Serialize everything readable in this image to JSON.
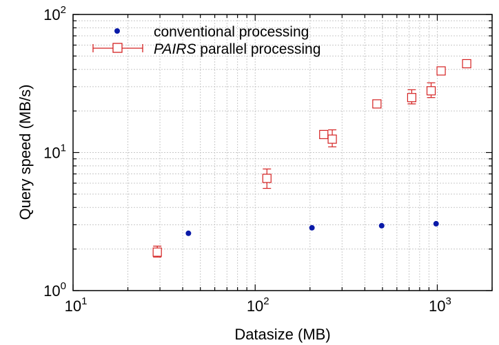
{
  "chart_data": {
    "type": "scatter",
    "title": "",
    "xlabel": "Datasize (MB)",
    "ylabel": "Query speed (MB/s)",
    "xscale": "log",
    "yscale": "log",
    "xlim": [
      10,
      2000
    ],
    "ylim": [
      1,
      100
    ],
    "grid": true,
    "legend_position": "top-center",
    "x_ticks": [
      {
        "value": 10,
        "base": "10",
        "exp": "1"
      },
      {
        "value": 100,
        "base": "10",
        "exp": "2"
      },
      {
        "value": 1000,
        "base": "10",
        "exp": "3"
      }
    ],
    "y_ticks": [
      {
        "value": 1,
        "base": "10",
        "exp": "0"
      },
      {
        "value": 10,
        "base": "10",
        "exp": "1"
      },
      {
        "value": 100,
        "base": "10",
        "exp": "2"
      }
    ],
    "series": [
      {
        "name": "conventional processing",
        "color": "#0a1aa8",
        "marker": "filled-circle",
        "points": [
          {
            "x": 43,
            "y": 2.6
          },
          {
            "x": 205,
            "y": 2.85
          },
          {
            "x": 495,
            "y": 2.95
          },
          {
            "x": 985,
            "y": 3.05
          }
        ]
      },
      {
        "name_italic": "PAIRS",
        "name": " parallel processing",
        "color": "#d42020",
        "marker": "open-square",
        "error_bars": true,
        "points": [
          {
            "x": 29,
            "y": 1.9,
            "ylo": 1.75,
            "yhi": 2.1
          },
          {
            "x": 116,
            "y": 6.5,
            "ylo": 5.5,
            "yhi": 7.6
          },
          {
            "x": 238,
            "y": 13.5,
            "ylo": 12.8,
            "yhi": 14.2
          },
          {
            "x": 265,
            "y": 12.5,
            "ylo": 11.0,
            "yhi": 14.6
          },
          {
            "x": 466,
            "y": 22.5,
            "ylo": 21.3,
            "yhi": 23.5
          },
          {
            "x": 724,
            "y": 25,
            "ylo": 22.5,
            "yhi": 28.5
          },
          {
            "x": 925,
            "y": 28,
            "ylo": 25,
            "yhi": 32
          },
          {
            "x": 1050,
            "y": 39,
            "ylo": 37,
            "yhi": 41
          },
          {
            "x": 1450,
            "y": 44,
            "ylo": 42,
            "yhi": 46
          }
        ]
      }
    ]
  }
}
